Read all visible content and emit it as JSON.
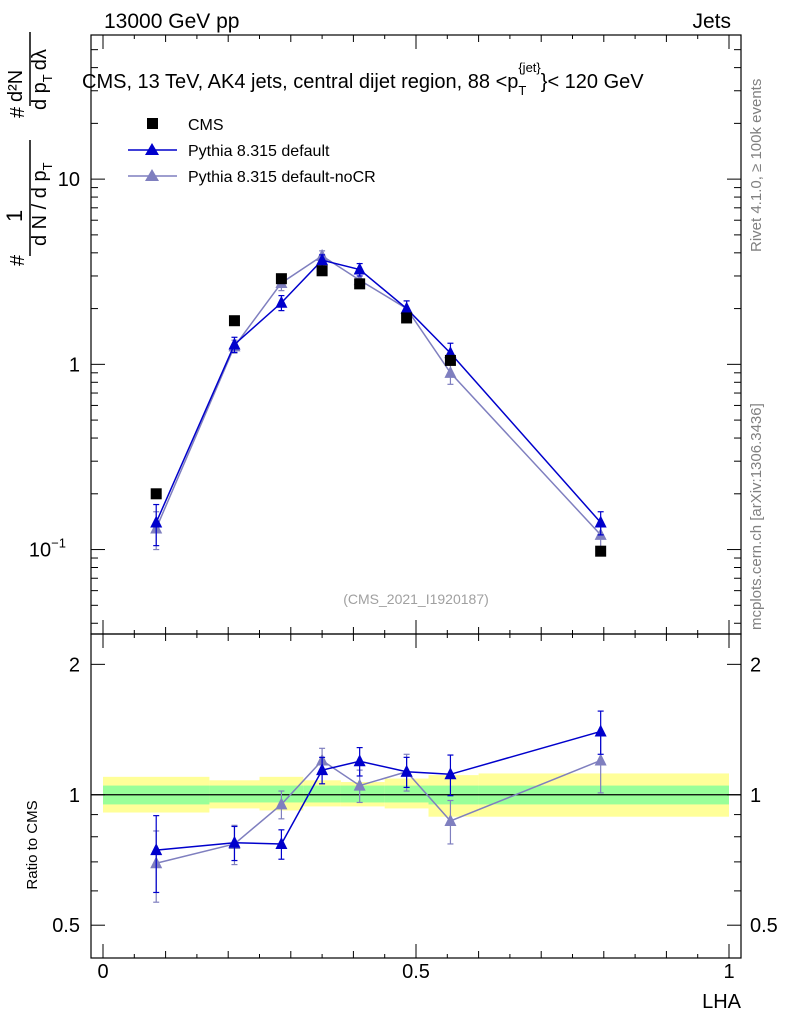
{
  "header": {
    "energy_label": "13000 GeV pp",
    "category_label": "Jets"
  },
  "side_labels": {
    "rivet": "Rivet 4.1.0, ≥ 100k events",
    "mcplots": "mcplots.cern.ch [arXiv:1306.3436]"
  },
  "chart_data": [
    {
      "type": "scatter",
      "title": "CMS, 13 TeV, AK4 jets, central dijet region, 88 <p_T^{jet}< 120 GeV",
      "title_parts": {
        "main": "CMS, 13 TeV, AK4 jets, central dijet region, 88 <p",
        "sub": "T",
        "sup": "{jet}",
        "tail": "}< 120 GeV"
      },
      "ylabel_parts": {
        "num": "1",
        "den": "d N / d p",
        "den_sub": "T",
        "hash": "#",
        "rnum": "d²N",
        "rden": "d p",
        "rden_sub": "T",
        "rden_tail": "dλ"
      },
      "yscale": "log",
      "ylim": [
        0.035,
        60
      ],
      "xlim": [
        0,
        1
      ],
      "yticks": [
        {
          "value": 0.1,
          "label": "10",
          "exp": "−1"
        },
        {
          "value": 1,
          "label": "1",
          "exp": ""
        },
        {
          "value": 10,
          "label": "10",
          "exp": ""
        }
      ],
      "watermark": "(CMS_2021_I1920187)",
      "legend_position": "top-left",
      "series": [
        {
          "name": "CMS",
          "color": "#000000",
          "marker": "square",
          "x": [
            0.085,
            0.21,
            0.285,
            0.35,
            0.41,
            0.485,
            0.555,
            0.795
          ],
          "y": [
            0.2,
            1.72,
            2.9,
            3.2,
            2.72,
            1.78,
            1.05,
            0.098
          ]
        },
        {
          "name": "Pythia 8.315 default",
          "color": "#0000cc",
          "marker": "triangle",
          "x": [
            0.085,
            0.21,
            0.285,
            0.35,
            0.41,
            0.485,
            0.555,
            0.795
          ],
          "y": [
            0.14,
            1.28,
            2.15,
            3.65,
            3.25,
            2.0,
            1.15,
            0.14
          ],
          "yerr": [
            0.035,
            0.12,
            0.2,
            0.25,
            0.25,
            0.2,
            0.15,
            0.02
          ]
        },
        {
          "name": "Pythia 8.315 default-noCR",
          "color": "#7f7fbf",
          "marker": "triangle",
          "x": [
            0.085,
            0.21,
            0.285,
            0.35,
            0.41,
            0.485,
            0.555,
            0.795
          ],
          "y": [
            0.13,
            1.25,
            2.75,
            3.85,
            2.85,
            2.0,
            0.9,
            0.12
          ],
          "yerr": [
            0.03,
            0.1,
            0.25,
            0.25,
            0.25,
            0.2,
            0.12,
            0.02
          ]
        }
      ]
    },
    {
      "type": "scatter",
      "title": "",
      "xlabel": "LHA",
      "ylabel": "Ratio to CMS",
      "yscale": "log",
      "ylim": [
        0.42,
        2.35
      ],
      "xlim": [
        0,
        1
      ],
      "xticks": [
        {
          "value": 0,
          "label": "0"
        },
        {
          "value": 0.5,
          "label": "0.5"
        },
        {
          "value": 1,
          "label": "1"
        }
      ],
      "yticks": [
        {
          "value": 0.5,
          "label": "0.5"
        },
        {
          "value": 1,
          "label": "1"
        },
        {
          "value": 2,
          "label": "2"
        }
      ],
      "bands": [
        {
          "x0": 0.0,
          "x1": 0.17,
          "stat": [
            0.95,
            1.05
          ],
          "total": [
            0.91,
            1.1
          ]
        },
        {
          "x0": 0.17,
          "x1": 0.25,
          "stat": [
            0.96,
            1.05
          ],
          "total": [
            0.93,
            1.08
          ]
        },
        {
          "x0": 0.25,
          "x1": 0.32,
          "stat": [
            0.96,
            1.05
          ],
          "total": [
            0.92,
            1.1
          ]
        },
        {
          "x0": 0.32,
          "x1": 0.38,
          "stat": [
            0.96,
            1.05
          ],
          "total": [
            0.94,
            1.08
          ]
        },
        {
          "x0": 0.38,
          "x1": 0.45,
          "stat": [
            0.96,
            1.05
          ],
          "total": [
            0.94,
            1.07
          ]
        },
        {
          "x0": 0.45,
          "x1": 0.52,
          "stat": [
            0.96,
            1.05
          ],
          "total": [
            0.93,
            1.09
          ]
        },
        {
          "x0": 0.52,
          "x1": 0.6,
          "stat": [
            0.95,
            1.05
          ],
          "total": [
            0.89,
            1.11
          ]
        },
        {
          "x0": 0.6,
          "x1": 1.0,
          "stat": [
            0.95,
            1.05
          ],
          "total": [
            0.89,
            1.12
          ]
        }
      ],
      "band_colors": {
        "stat": "#99ff99",
        "total": "#ffff99"
      },
      "series": [
        {
          "name": "Pythia 8.315 default",
          "color": "#0000cc",
          "x": [
            0.085,
            0.21,
            0.285,
            0.35,
            0.41,
            0.485,
            0.555,
            0.795
          ],
          "y": [
            0.745,
            0.775,
            0.77,
            1.14,
            1.195,
            1.13,
            1.115,
            1.4
          ],
          "yerr": [
            0.15,
            0.07,
            0.06,
            0.08,
            0.09,
            0.09,
            0.12,
            0.16
          ]
        },
        {
          "name": "Pythia 8.315 default-noCR",
          "color": "#7f7fbf",
          "x": [
            0.085,
            0.21,
            0.285,
            0.35,
            0.41,
            0.485,
            0.555,
            0.795
          ],
          "y": [
            0.695,
            0.77,
            0.95,
            1.2,
            1.05,
            1.13,
            0.87,
            1.2
          ],
          "yerr": [
            0.13,
            0.08,
            0.07,
            0.08,
            0.09,
            0.11,
            0.1,
            0.19
          ]
        }
      ]
    }
  ]
}
